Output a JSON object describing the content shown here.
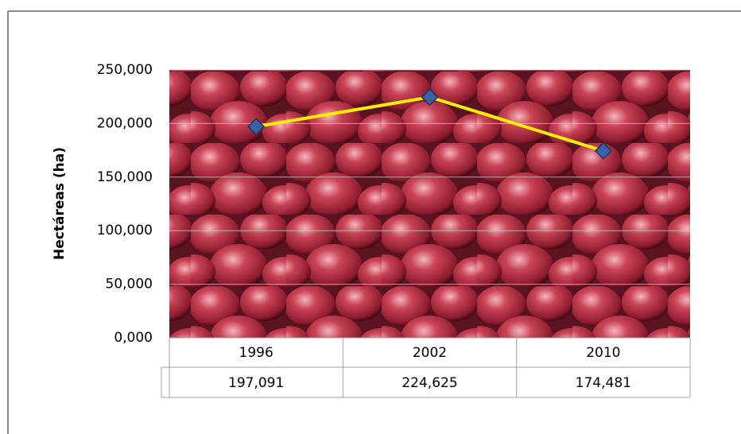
{
  "chart_data": {
    "type": "line",
    "categories": [
      "1996",
      "2002",
      "2010"
    ],
    "series": [
      {
        "values": [
          197091,
          224625,
          174481
        ],
        "value_labels": [
          "197,091",
          "224,625",
          "174,481"
        ],
        "color": "#ffee00",
        "marker_color": "#3a62a7"
      }
    ],
    "y_axis_label": "Hectáreas (ha)",
    "ylim": [
      0,
      250000
    ],
    "yticks": [
      {
        "value": 0,
        "label": "0,000"
      },
      {
        "value": 50000,
        "label": "50,000"
      },
      {
        "value": 100000,
        "label": "100,000"
      },
      {
        "value": 150000,
        "label": "150,000"
      },
      {
        "value": 200000,
        "label": "200,000"
      },
      {
        "value": 250000,
        "label": "250,000"
      }
    ],
    "grid": true
  }
}
